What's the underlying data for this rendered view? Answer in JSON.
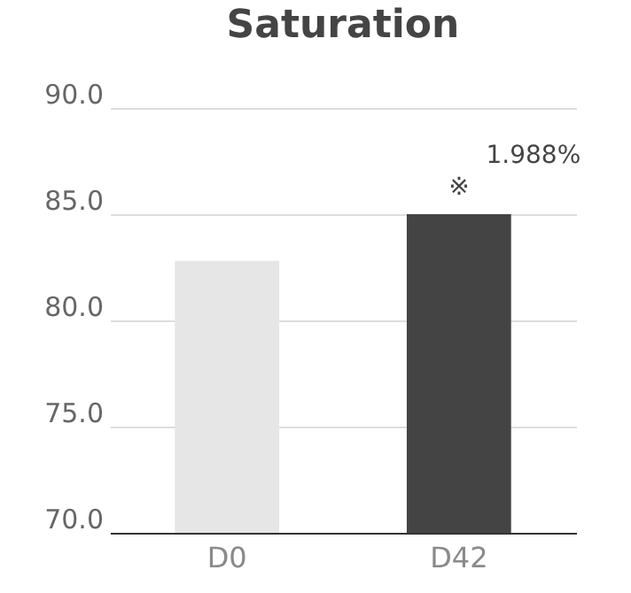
{
  "chart_data": {
    "type": "bar",
    "title": "Saturation",
    "categories": [
      "D0",
      "D42"
    ],
    "values": [
      82.8,
      85.0
    ],
    "colors": [
      "#e6e6e6",
      "#444444"
    ],
    "ylim": [
      70,
      90
    ],
    "yticks": [
      {
        "value": 70,
        "label": "70.0"
      },
      {
        "value": 75,
        "label": "75.0"
      },
      {
        "value": 80,
        "label": "80.0"
      },
      {
        "value": 85,
        "label": "85.0"
      },
      {
        "value": 90,
        "label": "90.0"
      }
    ],
    "grid": "y",
    "annotations": [
      {
        "text": "1.988%",
        "x": "D42",
        "y": 85.0
      },
      {
        "text": "※",
        "x": "D42",
        "y": 85.0
      }
    ]
  }
}
